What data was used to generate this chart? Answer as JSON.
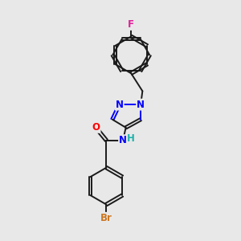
{
  "background_color": "#e8e8e8",
  "figsize": [
    3.0,
    3.0
  ],
  "dpi": 100,
  "black": "#1a1a1a",
  "blue": "#0000ff",
  "red": "#ff0000",
  "magenta": "#e0219a",
  "teal": "#20b2aa",
  "orange": "#cc7722",
  "bond_lw": 1.4,
  "font_size": 8.5,
  "xlim": [
    -1.2,
    1.5
  ],
  "ylim": [
    -2.4,
    4.4
  ]
}
